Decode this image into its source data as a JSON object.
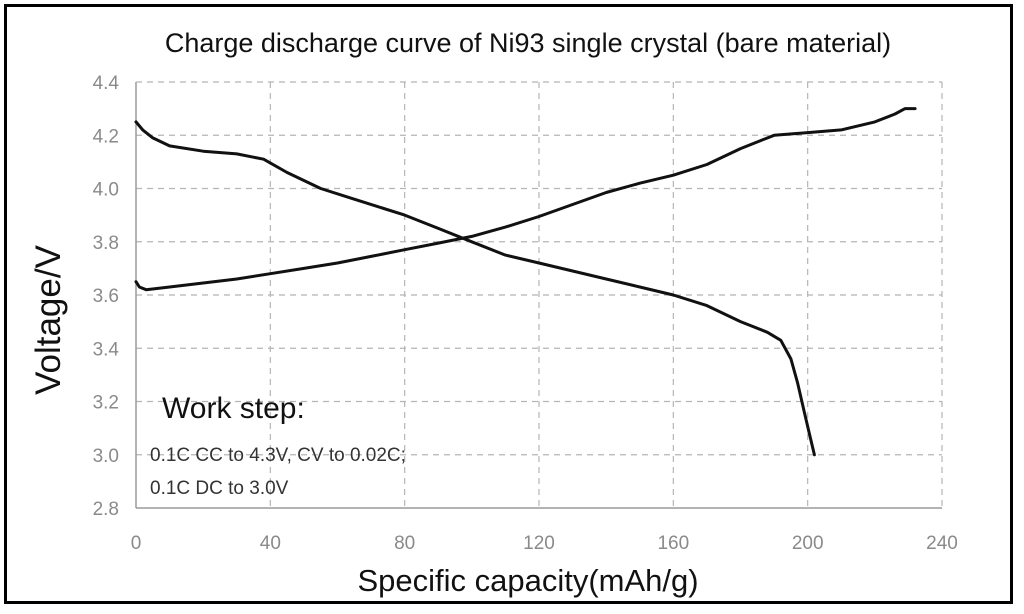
{
  "chart_data": {
    "type": "line",
    "title": "Charge discharge curve of Ni93 single crystal (bare material)",
    "xlabel": "Specific capacity(mAh/g)",
    "ylabel": "Voltage/V",
    "xlim": [
      0,
      240
    ],
    "ylim": [
      2.8,
      4.4
    ],
    "xticks": [
      "0",
      "40",
      "80",
      "120",
      "160",
      "200",
      "240"
    ],
    "yticks": [
      "2.8",
      "3.0",
      "3.2",
      "3.4",
      "3.6",
      "3.8",
      "4.0",
      "4.2",
      "4.4"
    ],
    "grid": true,
    "annotation": {
      "heading": "Work step:",
      "lines": [
        "0.1C CC to 4.3V, CV to 0.02C;",
        "0.1C DC to 3.0V"
      ]
    },
    "series": [
      {
        "x": [
          0,
          1,
          3,
          10,
          20,
          30,
          40,
          50,
          60,
          70,
          80,
          90,
          100,
          110,
          120,
          130,
          140,
          150,
          160,
          170,
          180,
          186,
          190,
          200,
          210,
          220,
          226,
          229,
          232
        ],
        "y": [
          3.65,
          3.63,
          3.62,
          3.63,
          3.645,
          3.66,
          3.68,
          3.7,
          3.72,
          3.745,
          3.77,
          3.795,
          3.82,
          3.855,
          3.895,
          3.94,
          3.985,
          4.02,
          4.05,
          4.09,
          4.15,
          4.18,
          4.2,
          4.21,
          4.22,
          4.25,
          4.28,
          4.3,
          4.3
        ]
      },
      {
        "x": [
          0,
          2,
          5,
          10,
          20,
          30,
          38,
          45,
          55,
          65,
          80,
          90,
          100,
          110,
          120,
          130,
          140,
          150,
          160,
          170,
          180,
          188,
          192,
          195,
          197,
          199,
          200.5,
          202
        ],
        "y": [
          4.25,
          4.22,
          4.19,
          4.16,
          4.14,
          4.13,
          4.11,
          4.06,
          4.0,
          3.96,
          3.9,
          3.85,
          3.8,
          3.75,
          3.72,
          3.69,
          3.66,
          3.63,
          3.6,
          3.56,
          3.5,
          3.46,
          3.43,
          3.36,
          3.27,
          3.16,
          3.08,
          3.0
        ]
      }
    ]
  }
}
